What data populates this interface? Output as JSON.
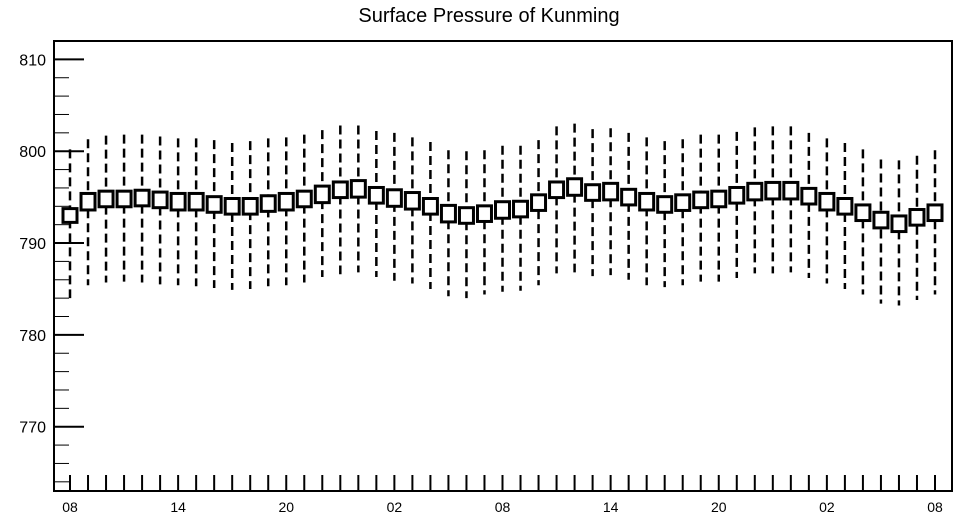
{
  "chart_data": {
    "type": "boxplot",
    "title": "Surface Pressure of Kunming",
    "xlabel": "",
    "ylabel": "",
    "ylim": [
      763,
      812
    ],
    "y_ticks": [
      770,
      780,
      790,
      800,
      810
    ],
    "x_tick_labels": [
      "08",
      "14",
      "20",
      "02",
      "08",
      "14",
      "20",
      "02",
      "08"
    ],
    "x_tick_every": 6,
    "grid": false,
    "values": [
      793.0,
      794.5,
      794.8,
      794.8,
      794.9,
      794.7,
      794.5,
      794.5,
      794.2,
      794.0,
      794.0,
      794.3,
      794.5,
      794.8,
      795.3,
      795.8,
      795.9,
      795.2,
      794.9,
      794.6,
      794.0,
      793.2,
      793.0,
      793.2,
      793.6,
      793.7,
      794.4,
      795.8,
      796.1,
      795.5,
      795.6,
      795.0,
      794.5,
      794.2,
      794.4,
      794.7,
      794.8,
      795.2,
      795.6,
      795.7,
      795.7,
      795.1,
      794.5,
      794.0,
      793.3,
      792.5,
      792.1,
      792.8,
      793.3
    ],
    "box_low": [
      792.3,
      793.6,
      793.9,
      793.9,
      794.0,
      793.8,
      793.6,
      793.6,
      793.3,
      793.1,
      793.1,
      793.4,
      793.6,
      793.9,
      794.4,
      794.9,
      795.0,
      794.3,
      794.0,
      793.7,
      793.1,
      792.3,
      792.1,
      792.3,
      792.7,
      792.8,
      793.5,
      794.9,
      795.2,
      794.6,
      794.7,
      794.1,
      793.6,
      793.3,
      793.5,
      793.8,
      793.9,
      794.3,
      794.7,
      794.8,
      794.8,
      794.2,
      793.6,
      793.1,
      792.4,
      791.6,
      791.2,
      791.9,
      792.4
    ],
    "box_high": [
      793.8,
      795.4,
      795.6,
      795.6,
      795.7,
      795.5,
      795.4,
      795.4,
      795.0,
      794.8,
      794.8,
      795.1,
      795.4,
      795.6,
      796.2,
      796.6,
      796.8,
      796.0,
      795.8,
      795.5,
      794.8,
      794.1,
      793.8,
      794.0,
      794.5,
      794.5,
      795.2,
      796.6,
      797.0,
      796.3,
      796.5,
      795.8,
      795.4,
      795.0,
      795.2,
      795.5,
      795.6,
      796.0,
      796.5,
      796.6,
      796.6,
      795.9,
      795.4,
      794.8,
      794.1,
      793.3,
      792.9,
      793.6,
      794.1
    ],
    "whisker_low": [
      784.0,
      785.4,
      785.7,
      785.8,
      785.7,
      785.5,
      785.4,
      785.3,
      785.1,
      784.9,
      785.0,
      785.3,
      785.4,
      785.7,
      786.3,
      786.6,
      786.8,
      786.3,
      785.9,
      785.6,
      785.0,
      784.2,
      784.0,
      784.4,
      784.7,
      784.8,
      785.4,
      786.7,
      786.8,
      786.4,
      786.5,
      786.0,
      785.4,
      785.2,
      785.4,
      785.8,
      785.8,
      786.2,
      786.7,
      786.7,
      786.8,
      786.2,
      785.6,
      785.0,
      784.4,
      783.4,
      783.2,
      783.8,
      784.4
    ],
    "whisker_high": [
      800.2,
      801.3,
      801.7,
      801.8,
      801.8,
      801.6,
      801.4,
      801.4,
      801.2,
      800.9,
      801.1,
      801.4,
      801.5,
      801.8,
      802.3,
      802.8,
      802.8,
      802.2,
      802.0,
      801.5,
      801.0,
      800.1,
      800.0,
      800.1,
      800.6,
      800.6,
      801.2,
      802.7,
      803.0,
      802.4,
      802.5,
      802.0,
      801.5,
      801.1,
      801.3,
      801.8,
      801.8,
      802.1,
      802.6,
      802.7,
      802.7,
      802.0,
      801.4,
      800.9,
      800.2,
      799.1,
      799.0,
      799.5,
      800.1
    ]
  }
}
